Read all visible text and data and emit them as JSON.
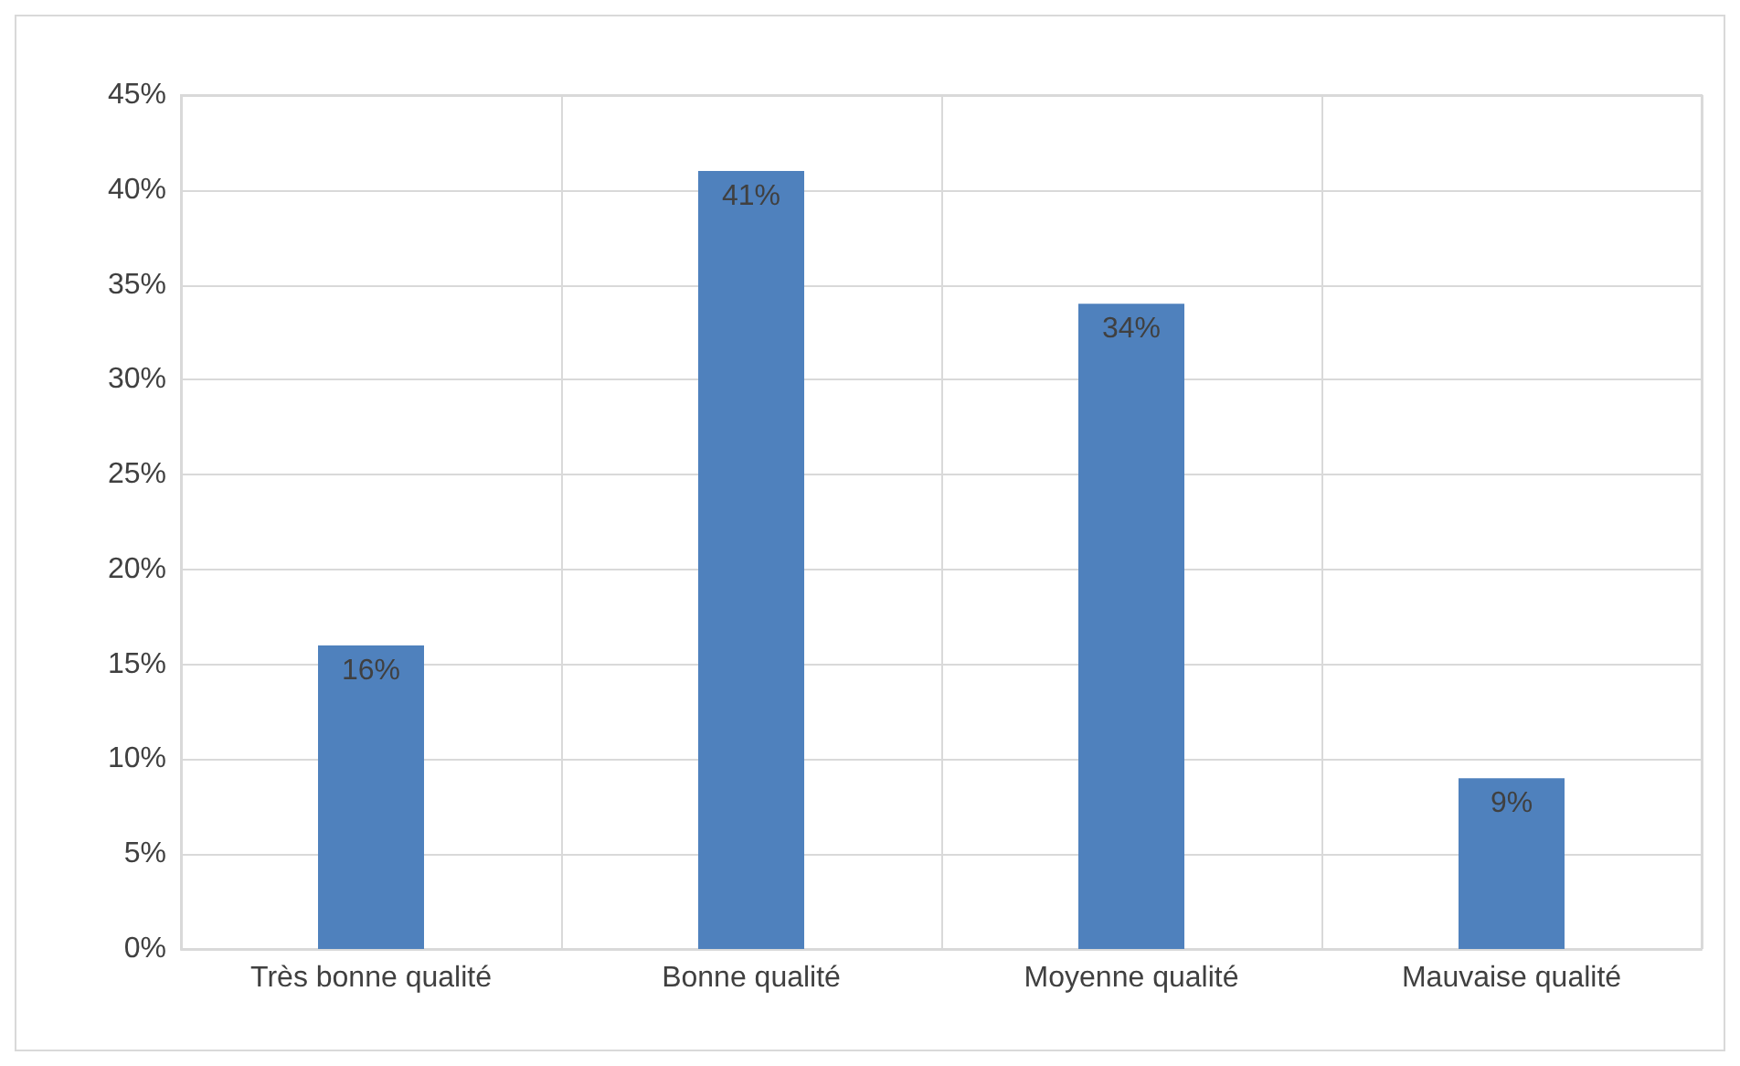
{
  "chart_data": {
    "type": "bar",
    "categories": [
      "Très bonne qualité",
      "Bonne qualité",
      "Moyenne qualité",
      "Mauvaise qualité"
    ],
    "values": [
      16,
      41,
      34,
      9
    ],
    "color": "#4f81bd",
    "value_labels": [
      "16%",
      "41%",
      "34%",
      "9%"
    ],
    "ylim": [
      0,
      45
    ],
    "yticks": [
      {
        "value": 0,
        "label": "0%"
      },
      {
        "value": 5,
        "label": "5%"
      },
      {
        "value": 10,
        "label": "10%"
      },
      {
        "value": 15,
        "label": "15%"
      },
      {
        "value": 20,
        "label": "20%"
      },
      {
        "value": 25,
        "label": "25%"
      },
      {
        "value": 30,
        "label": "30%"
      },
      {
        "value": 35,
        "label": "35%"
      },
      {
        "value": 40,
        "label": "40%"
      },
      {
        "value": 45,
        "label": "45%"
      }
    ],
    "grid": true
  }
}
